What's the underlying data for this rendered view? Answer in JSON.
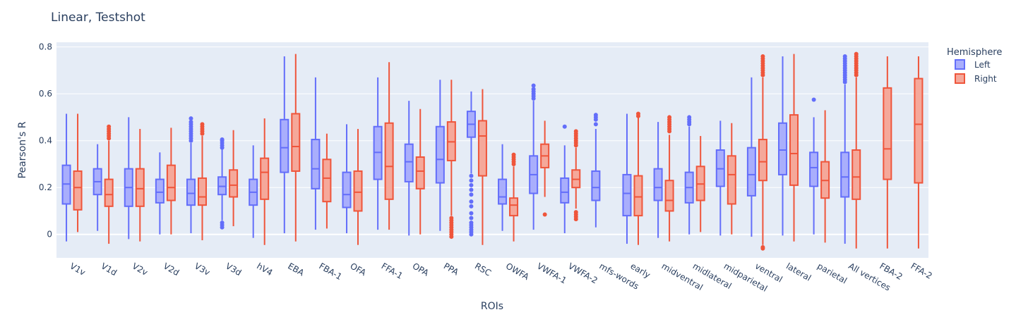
{
  "chart_data": {
    "type": "box",
    "title": "Linear, Testshot",
    "xlabel": "ROIs",
    "ylabel": "Pearson's R",
    "ylim": [
      -0.1,
      0.82
    ],
    "yticks": [
      0,
      0.2,
      0.4,
      0.6,
      0.8
    ],
    "ytick_labels": [
      "0",
      "0.2",
      "0.4",
      "0.6",
      "0.8"
    ],
    "grid": true,
    "legend": {
      "title": "Hemisphere",
      "position": "top-right"
    },
    "categories": [
      "V1v",
      "V1d",
      "V2v",
      "V2d",
      "V3v",
      "V3d",
      "hV4",
      "EBA",
      "FBA-1",
      "OFA",
      "FFA-1",
      "OPA",
      "PPA",
      "RSC",
      "OWFA",
      "VWFA-1",
      "VWFA-2",
      "mfs-words",
      "early",
      "midventral",
      "midlateral",
      "midparietal",
      "ventral",
      "lateral",
      "parietal",
      "All vertices",
      "FBA-2",
      "FFA-2"
    ],
    "series": [
      {
        "name": "Left",
        "color": "#636efa",
        "fill": "#a9aefc",
        "boxes": [
          {
            "min": -0.03,
            "q1": 0.13,
            "median": 0.215,
            "q3": 0.295,
            "max": 0.515,
            "outliers": []
          },
          {
            "min": 0.015,
            "q1": 0.17,
            "median": 0.225,
            "q3": 0.28,
            "max": 0.385,
            "outliers": []
          },
          {
            "min": -0.02,
            "q1": 0.12,
            "median": 0.2,
            "q3": 0.28,
            "max": 0.5,
            "outliers": []
          },
          {
            "min": 0.0,
            "q1": 0.135,
            "median": 0.18,
            "q3": 0.235,
            "max": 0.35,
            "outliers": []
          },
          {
            "min": 0.005,
            "q1": 0.125,
            "median": 0.175,
            "q3": 0.235,
            "max": 0.39,
            "outliers": [
              0.4,
              0.41,
              0.42,
              0.43,
              0.44,
              0.45,
              0.46,
              0.47,
              0.48,
              0.495
            ]
          },
          {
            "min": 0.06,
            "q1": 0.17,
            "median": 0.205,
            "q3": 0.245,
            "max": 0.365,
            "outliers": [
              0.03,
              0.04,
              0.05,
              0.37,
              0.38,
              0.39,
              0.4,
              0.405
            ]
          },
          {
            "min": -0.015,
            "q1": 0.125,
            "median": 0.18,
            "q3": 0.235,
            "max": 0.38,
            "outliers": []
          },
          {
            "min": 0.005,
            "q1": 0.265,
            "median": 0.37,
            "q3": 0.49,
            "max": 0.76,
            "outliers": []
          },
          {
            "min": 0.02,
            "q1": 0.195,
            "median": 0.28,
            "q3": 0.405,
            "max": 0.67,
            "outliers": []
          },
          {
            "min": 0.005,
            "q1": 0.115,
            "median": 0.17,
            "q3": 0.265,
            "max": 0.47,
            "outliers": []
          },
          {
            "min": 0.02,
            "q1": 0.235,
            "median": 0.35,
            "q3": 0.46,
            "max": 0.67,
            "outliers": []
          },
          {
            "min": -0.005,
            "q1": 0.225,
            "median": 0.31,
            "q3": 0.385,
            "max": 0.57,
            "outliers": []
          },
          {
            "min": 0.015,
            "q1": 0.22,
            "median": 0.32,
            "q3": 0.46,
            "max": 0.66,
            "outliers": []
          },
          {
            "min": 0.26,
            "q1": 0.415,
            "median": 0.47,
            "q3": 0.525,
            "max": 0.61,
            "outliers": [
              0.0,
              0.01,
              0.02,
              0.03,
              0.04,
              0.05,
              0.07,
              0.09,
              0.12,
              0.14,
              0.17,
              0.19,
              0.21,
              0.23,
              0.25
            ]
          },
          {
            "min": 0.015,
            "q1": 0.13,
            "median": 0.16,
            "q3": 0.235,
            "max": 0.385,
            "outliers": []
          },
          {
            "min": 0.02,
            "q1": 0.175,
            "median": 0.255,
            "q3": 0.335,
            "max": 0.57,
            "outliers": [
              0.58,
              0.59,
              0.6,
              0.61,
              0.62,
              0.635
            ]
          },
          {
            "min": 0.005,
            "q1": 0.135,
            "median": 0.18,
            "q3": 0.24,
            "max": 0.38,
            "outliers": [
              0.46
            ]
          },
          {
            "min": 0.03,
            "q1": 0.145,
            "median": 0.2,
            "q3": 0.27,
            "max": 0.45,
            "outliers": [
              0.47,
              0.49,
              0.5,
              0.51
            ]
          },
          {
            "min": -0.04,
            "q1": 0.08,
            "median": 0.175,
            "q3": 0.255,
            "max": 0.515,
            "outliers": []
          },
          {
            "min": -0.015,
            "q1": 0.145,
            "median": 0.2,
            "q3": 0.28,
            "max": 0.48,
            "outliers": []
          },
          {
            "min": 0.0,
            "q1": 0.135,
            "median": 0.2,
            "q3": 0.265,
            "max": 0.46,
            "outliers": [
              0.47,
              0.48,
              0.49,
              0.5
            ]
          },
          {
            "min": -0.005,
            "q1": 0.205,
            "median": 0.28,
            "q3": 0.36,
            "max": 0.485,
            "outliers": []
          },
          {
            "min": -0.01,
            "q1": 0.165,
            "median": 0.255,
            "q3": 0.37,
            "max": 0.67,
            "outliers": []
          },
          {
            "min": -0.005,
            "q1": 0.255,
            "median": 0.36,
            "q3": 0.475,
            "max": 0.76,
            "outliers": []
          },
          {
            "min": 0.0,
            "q1": 0.205,
            "median": 0.285,
            "q3": 0.35,
            "max": 0.5,
            "outliers": [
              0.575
            ]
          },
          {
            "min": -0.04,
            "q1": 0.16,
            "median": 0.245,
            "q3": 0.35,
            "max": 0.64,
            "outliers": [
              0.65,
              0.66,
              0.67,
              0.68,
              0.69,
              0.7,
              0.71,
              0.72,
              0.73,
              0.74,
              0.75,
              0.76
            ]
          },
          null,
          null
        ]
      },
      {
        "name": "Right",
        "color": "#ef553b",
        "fill": "#f5a89a",
        "boxes": [
          {
            "min": 0.01,
            "q1": 0.105,
            "median": 0.2,
            "q3": 0.27,
            "max": 0.515,
            "outliers": []
          },
          {
            "min": -0.04,
            "q1": 0.12,
            "median": 0.17,
            "q3": 0.235,
            "max": 0.4,
            "outliers": [
              0.41,
              0.42,
              0.43,
              0.44,
              0.45,
              0.46
            ]
          },
          {
            "min": -0.03,
            "q1": 0.12,
            "median": 0.195,
            "q3": 0.28,
            "max": 0.45,
            "outliers": []
          },
          {
            "min": 0.0,
            "q1": 0.145,
            "median": 0.2,
            "q3": 0.295,
            "max": 0.455,
            "outliers": []
          },
          {
            "min": -0.025,
            "q1": 0.125,
            "median": 0.16,
            "q3": 0.24,
            "max": 0.42,
            "outliers": [
              0.43,
              0.44,
              0.45,
              0.46,
              0.47
            ]
          },
          {
            "min": 0.035,
            "q1": 0.16,
            "median": 0.21,
            "q3": 0.275,
            "max": 0.445,
            "outliers": []
          },
          {
            "min": -0.045,
            "q1": 0.15,
            "median": 0.265,
            "q3": 0.325,
            "max": 0.495,
            "outliers": []
          },
          {
            "min": -0.03,
            "q1": 0.27,
            "median": 0.375,
            "q3": 0.515,
            "max": 0.77,
            "outliers": []
          },
          {
            "min": 0.025,
            "q1": 0.14,
            "median": 0.24,
            "q3": 0.32,
            "max": 0.43,
            "outliers": []
          },
          {
            "min": -0.045,
            "q1": 0.1,
            "median": 0.18,
            "q3": 0.27,
            "max": 0.45,
            "outliers": []
          },
          {
            "min": 0.02,
            "q1": 0.15,
            "median": 0.29,
            "q3": 0.475,
            "max": 0.735,
            "outliers": []
          },
          {
            "min": 0.0,
            "q1": 0.195,
            "median": 0.27,
            "q3": 0.33,
            "max": 0.535,
            "outliers": []
          },
          {
            "min": 0.08,
            "q1": 0.315,
            "median": 0.395,
            "q3": 0.48,
            "max": 0.66,
            "outliers": [
              -0.01,
              0.0,
              0.01,
              0.02,
              0.03,
              0.04,
              0.05,
              0.06,
              0.07
            ]
          },
          {
            "min": -0.045,
            "q1": 0.25,
            "median": 0.42,
            "q3": 0.485,
            "max": 0.62,
            "outliers": []
          },
          {
            "min": -0.03,
            "q1": 0.08,
            "median": 0.125,
            "q3": 0.155,
            "max": 0.29,
            "outliers": [
              0.3,
              0.31,
              0.32,
              0.33,
              0.34
            ]
          },
          {
            "min": 0.16,
            "q1": 0.285,
            "median": 0.335,
            "q3": 0.385,
            "max": 0.485,
            "outliers": [
              0.085
            ]
          },
          {
            "min": 0.11,
            "q1": 0.2,
            "median": 0.235,
            "q3": 0.275,
            "max": 0.37,
            "outliers": [
              0.065,
              0.075,
              0.085,
              0.095,
              0.38,
              0.39,
              0.4,
              0.41,
              0.42,
              0.43,
              0.44
            ]
          },
          null,
          {
            "min": -0.045,
            "q1": 0.08,
            "median": 0.16,
            "q3": 0.25,
            "max": 0.5,
            "outliers": [
              0.505,
              0.515
            ]
          },
          {
            "min": -0.03,
            "q1": 0.1,
            "median": 0.145,
            "q3": 0.23,
            "max": 0.425,
            "outliers": [
              0.44,
              0.45,
              0.46,
              0.47,
              0.48,
              0.49,
              0.5
            ]
          },
          {
            "min": 0.01,
            "q1": 0.145,
            "median": 0.215,
            "q3": 0.29,
            "max": 0.42,
            "outliers": []
          },
          {
            "min": 0.0,
            "q1": 0.13,
            "median": 0.255,
            "q3": 0.335,
            "max": 0.475,
            "outliers": []
          },
          {
            "min": -0.045,
            "q1": 0.23,
            "median": 0.31,
            "q3": 0.405,
            "max": 0.67,
            "outliers": [
              -0.06,
              -0.055,
              0.68,
              0.69,
              0.7,
              0.71,
              0.72,
              0.73,
              0.74,
              0.75,
              0.76
            ]
          },
          {
            "min": -0.03,
            "q1": 0.21,
            "median": 0.345,
            "q3": 0.51,
            "max": 0.77,
            "outliers": []
          },
          {
            "min": -0.035,
            "q1": 0.155,
            "median": 0.23,
            "q3": 0.31,
            "max": 0.53,
            "outliers": []
          },
          {
            "min": -0.06,
            "q1": 0.15,
            "median": 0.245,
            "q3": 0.36,
            "max": 0.67,
            "outliers": [
              0.68,
              0.69,
              0.7,
              0.71,
              0.72,
              0.73,
              0.74,
              0.75,
              0.76,
              0.77
            ]
          },
          {
            "min": -0.06,
            "q1": 0.235,
            "median": 0.365,
            "q3": 0.625,
            "max": 0.76,
            "outliers": []
          },
          {
            "min": -0.06,
            "q1": 0.22,
            "median": 0.47,
            "q3": 0.665,
            "max": 0.76,
            "outliers": []
          }
        ]
      }
    ]
  }
}
